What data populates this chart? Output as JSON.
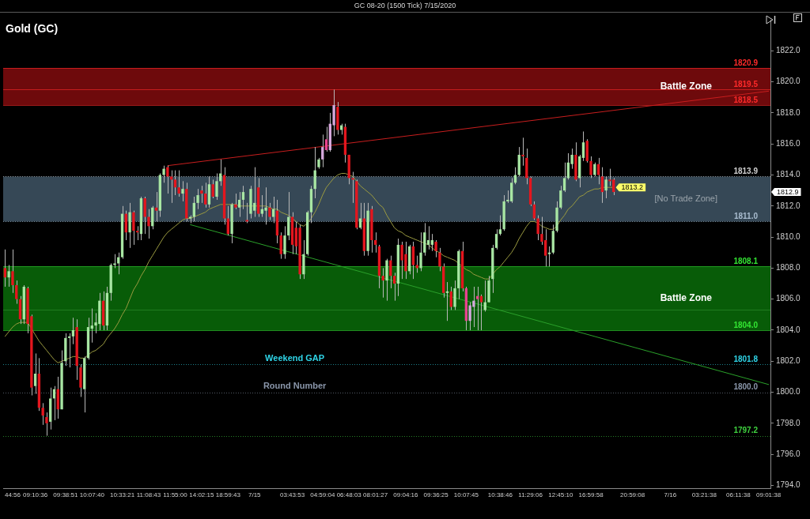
{
  "chart_data": {
    "type": "candlestick",
    "title": "Gold (GC)",
    "subtitle": "GC 08-20 (1500 Tick) 7/15/2020",
    "categories": [
      null,
      null,
      "44:56",
      null,
      null,
      null,
      null,
      null,
      "09:10:36",
      null,
      null,
      null,
      null,
      null,
      null,
      null,
      "09:38:51",
      null,
      null,
      null,
      null,
      null,
      null,
      "10:07:40",
      null,
      null,
      null,
      null,
      null,
      null,
      null,
      "10:33:21",
      null,
      null,
      null,
      null,
      null,
      null,
      "11:08:43",
      null,
      null,
      null,
      null,
      null,
      null,
      "11:55:00",
      null,
      null,
      null,
      null,
      null,
      null,
      "14:02:15",
      null,
      null,
      null,
      null,
      null,
      null,
      "18:59:43",
      null,
      null,
      null,
      null,
      null,
      null,
      "7/15",
      null,
      null,
      null,
      null,
      null,
      null,
      null,
      null,
      null,
      "03:43:53",
      null,
      null,
      null,
      null,
      null,
      null,
      null,
      "04:59:04",
      null,
      null,
      null,
      null,
      null,
      null,
      "06:48:03",
      null,
      null,
      null,
      null,
      null,
      null,
      "08:01:27",
      null,
      null,
      null,
      null,
      null,
      null,
      null,
      "09:04:16",
      null,
      null,
      null,
      null,
      null,
      null,
      null,
      "09:36:25",
      null,
      null,
      null,
      null,
      null,
      null,
      null,
      "10:07:45",
      null,
      null,
      null,
      null,
      null,
      null,
      null,
      null,
      "10:38:46",
      null,
      null,
      null,
      null,
      null,
      null,
      null,
      "11:29:06",
      null,
      null,
      null,
      null,
      null,
      null,
      null,
      "12:45:10",
      null,
      null,
      null,
      null,
      null,
      null,
      null,
      "16:59:58",
      null,
      null,
      null,
      null,
      null,
      null,
      null,
      null,
      null,
      null,
      "20:59:08",
      null,
      null,
      null,
      null,
      null,
      null,
      null,
      null,
      null,
      "7/16",
      null,
      null,
      null,
      null,
      null,
      null,
      null,
      null,
      "03:21:38",
      null,
      null,
      null,
      null,
      null,
      null,
      null,
      null,
      "06:11:38",
      null,
      null,
      null,
      null,
      null,
      null,
      null,
      "09:01:38"
    ],
    "ohlc": [
      [
        1808.0,
        1809.2,
        1806.8,
        1807.4
      ],
      [
        1807.4,
        1808.2,
        1806.8,
        1807.8
      ],
      [
        1807.8,
        1809.2,
        1806.4,
        1806.9
      ],
      [
        1806.9,
        1807.2,
        1805.7,
        1806.0
      ],
      [
        1806.0,
        1806.2,
        1804.4,
        1804.7
      ],
      [
        1804.7,
        1806.9,
        1804.4,
        1806.8
      ],
      [
        1806.7,
        1806.8,
        1803.8,
        1804.4
      ],
      [
        1804.9,
        1805.0,
        1799.8,
        1800.3
      ],
      [
        1800.4,
        1802.5,
        1799.9,
        1801.2
      ],
      [
        1801.2,
        1802.2,
        1798.8,
        1799.0
      ],
      [
        1799.0,
        1799.3,
        1797.9,
        1798.5
      ],
      [
        1798.4,
        1798.7,
        1797.2,
        1798.0
      ],
      [
        1798.1,
        1800.3,
        1797.6,
        1799.6
      ],
      [
        1799.6,
        1800.4,
        1798.2,
        1800.2
      ],
      [
        1800.2,
        1801.0,
        1798.3,
        1798.9
      ],
      [
        1798.9,
        1802.7,
        1798.9,
        1801.9
      ],
      [
        1802.0,
        1803.8,
        1801.7,
        1803.5
      ],
      [
        1803.5,
        1803.8,
        1801.6,
        1803.6
      ],
      [
        1803.6,
        1804.8,
        1803.1,
        1804.0
      ],
      [
        1804.2,
        1804.7,
        1800.8,
        1801.7
      ],
      [
        1801.6,
        1801.8,
        1799.7,
        1800.3
      ],
      [
        1800.2,
        1802.3,
        1798.7,
        1802.2
      ],
      [
        1802.2,
        1804.8,
        1802.1,
        1804.2
      ],
      [
        1804.1,
        1805.4,
        1803.2,
        1804.3
      ],
      [
        1804.3,
        1805.1,
        1803.8,
        1804.5
      ],
      [
        1804.4,
        1806.4,
        1804.0,
        1805.9
      ],
      [
        1805.9,
        1806.5,
        1804.0,
        1804.3
      ],
      [
        1804.3,
        1806.8,
        1804.0,
        1806.4
      ],
      [
        1806.4,
        1808.3,
        1805.9,
        1808.2
      ],
      [
        1808.2,
        1808.9,
        1808.0,
        1808.3
      ],
      [
        1808.3,
        1809.0,
        1807.6,
        1808.7
      ],
      [
        1808.7,
        1812.0,
        1808.6,
        1811.5
      ],
      [
        1811.5,
        1811.7,
        1809.8,
        1810.3
      ],
      [
        1810.3,
        1812.2,
        1809.3,
        1811.6
      ],
      [
        1811.6,
        1811.7,
        1809.5,
        1810.4
      ],
      [
        1810.4,
        1810.7,
        1809.8,
        1810.3
      ],
      [
        1810.2,
        1812.6,
        1809.8,
        1812.5
      ],
      [
        1812.5,
        1812.6,
        1810.2,
        1811.3
      ],
      [
        1811.3,
        1811.8,
        1809.9,
        1810.7
      ],
      [
        1810.7,
        1812.0,
        1810.5,
        1811.9
      ],
      [
        1811.9,
        1812.9,
        1811.0,
        1811.7
      ],
      [
        1811.7,
        1814.1,
        1811.3,
        1814.0
      ],
      [
        1814.0,
        1814.6,
        1813.5,
        1814.4
      ],
      [
        1814.5,
        1814.6,
        1812.8,
        1813.9
      ],
      [
        1813.9,
        1814.3,
        1812.2,
        1813.7
      ],
      [
        1813.7,
        1814.3,
        1812.7,
        1813.2
      ],
      [
        1813.2,
        1814.3,
        1812.6,
        1812.8
      ],
      [
        1812.8,
        1813.6,
        1812.3,
        1813.1
      ],
      [
        1813.1,
        1813.5,
        1811.0,
        1811.2
      ],
      [
        1811.2,
        1811.4,
        1810.9,
        1811.3
      ],
      [
        1811.3,
        1812.6,
        1811.0,
        1812.2
      ],
      [
        1812.2,
        1813.1,
        1811.8,
        1812.7
      ],
      [
        1813.0,
        1813.3,
        1812.2,
        1812.8
      ],
      [
        1812.8,
        1813.5,
        1811.9,
        1812.1
      ],
      [
        1812.1,
        1813.9,
        1811.9,
        1813.4
      ],
      [
        1813.4,
        1813.7,
        1812.5,
        1812.6
      ],
      [
        1812.6,
        1814.1,
        1812.4,
        1813.6
      ],
      [
        1813.6,
        1815.0,
        1813.3,
        1814.1
      ],
      [
        1814.0,
        1814.5,
        1810.8,
        1811.2
      ],
      [
        1811.2,
        1812.0,
        1810.1,
        1810.2
      ],
      [
        1810.2,
        1812.2,
        1809.6,
        1812.1
      ],
      [
        1812.1,
        1812.8,
        1811.8,
        1811.9
      ],
      [
        1811.9,
        1812.9,
        1811.3,
        1812.4
      ],
      [
        1812.4,
        1813.3,
        1811.8,
        1812.9
      ],
      [
        1811.1,
        1812.2,
        1810.9,
        1811.0
      ],
      [
        1811.5,
        1813.3,
        1811.2,
        1813.1
      ],
      [
        1811.7,
        1814.5,
        1811.3,
        1812.2
      ],
      [
        1813.2,
        1813.8,
        1811.3,
        1811.5
      ],
      [
        1811.5,
        1812.7,
        1811.3,
        1811.8
      ],
      [
        1811.7,
        1813.2,
        1810.8,
        1811.9
      ],
      [
        1811.9,
        1812.2,
        1811.1,
        1811.3
      ],
      [
        1811.3,
        1812.6,
        1810.9,
        1811.8
      ],
      [
        1811.7,
        1812.4,
        1809.6,
        1810.1
      ],
      [
        1810.1,
        1810.3,
        1808.6,
        1808.9
      ],
      [
        1808.9,
        1810.7,
        1808.6,
        1810.1
      ],
      [
        1810.1,
        1812.9,
        1809.8,
        1811.3
      ],
      [
        1811.3,
        1811.6,
        1808.9,
        1809.5
      ],
      [
        1810.6,
        1811.0,
        1808.9,
        1809.4
      ],
      [
        1810.6,
        1810.8,
        1807.3,
        1807.6
      ],
      [
        1807.6,
        1809.8,
        1807.3,
        1808.9
      ],
      [
        1808.9,
        1811.7,
        1808.8,
        1811.6
      ],
      [
        1811.6,
        1813.3,
        1810.9,
        1813.1
      ],
      [
        1813.1,
        1815.8,
        1812.5,
        1814.3
      ],
      [
        1814.5,
        1815.1,
        1814.4,
        1815.0
      ],
      [
        1815.0,
        1816.6,
        1814.5,
        1815.8
      ],
      [
        1816.3,
        1817.1,
        1815.5,
        1815.6
      ],
      [
        1815.6,
        1818.0,
        1815.5,
        1817.3
      ],
      [
        1817.2,
        1819.5,
        1816.5,
        1818.5
      ],
      [
        1818.4,
        1818.7,
        1816.6,
        1816.9
      ],
      [
        1816.9,
        1817.3,
        1816.6,
        1817.2
      ],
      [
        1817.1,
        1817.3,
        1814.8,
        1815.3
      ],
      [
        1815.3,
        1815.3,
        1813.4,
        1813.8
      ],
      [
        1813.8,
        1814.2,
        1812.2,
        1813.7
      ],
      [
        1813.6,
        1813.7,
        1810.5,
        1810.6
      ],
      [
        1810.6,
        1812.2,
        1810.5,
        1811.2
      ],
      [
        1811.2,
        1812.2,
        1808.8,
        1809.1
      ],
      [
        1809.1,
        1812.2,
        1808.8,
        1811.7
      ],
      [
        1811.8,
        1812.0,
        1809.0,
        1809.8
      ],
      [
        1809.8,
        1810.3,
        1809.0,
        1809.5
      ],
      [
        1809.4,
        1809.5,
        1806.7,
        1807.5
      ],
      [
        1807.5,
        1808.0,
        1806.1,
        1807.2
      ],
      [
        1807.2,
        1808.6,
        1805.9,
        1808.5
      ],
      [
        1808.5,
        1808.8,
        1806.7,
        1807.5
      ],
      [
        1807.5,
        1807.7,
        1805.9,
        1807.0
      ],
      [
        1807.0,
        1809.9,
        1806.2,
        1809.5
      ],
      [
        1809.5,
        1809.7,
        1807.3,
        1808.5
      ],
      [
        1808.9,
        1809.7,
        1807.3,
        1807.8
      ],
      [
        1807.8,
        1809.5,
        1807.6,
        1809.4
      ],
      [
        1809.4,
        1809.7,
        1807.3,
        1808.2
      ],
      [
        1808.2,
        1808.8,
        1807.7,
        1808.0
      ],
      [
        1808.0,
        1810.3,
        1807.8,
        1809.0
      ],
      [
        1809.0,
        1810.9,
        1808.8,
        1810.3
      ],
      [
        1809.5,
        1810.7,
        1809.2,
        1809.8
      ],
      [
        1809.5,
        1810.2,
        1809.1,
        1809.8
      ],
      [
        1809.7,
        1809.8,
        1808.7,
        1809.1
      ],
      [
        1809.0,
        1809.3,
        1807.8,
        1808.1
      ],
      [
        1808.1,
        1808.3,
        1806.1,
        1806.4
      ],
      [
        1806.4,
        1807.1,
        1804.6,
        1806.5
      ],
      [
        1806.5,
        1806.8,
        1805.3,
        1805.5
      ],
      [
        1805.5,
        1807.2,
        1805.3,
        1806.7
      ],
      [
        1806.7,
        1809.2,
        1806.0,
        1809.1
      ],
      [
        1809.1,
        1809.7,
        1806.5,
        1806.7
      ],
      [
        1806.7,
        1806.8,
        1804.0,
        1804.6
      ],
      [
        1804.6,
        1805.8,
        1804.0,
        1805.6
      ],
      [
        1805.5,
        1806.8,
        1804.2,
        1805.9
      ],
      [
        1806.2,
        1806.8,
        1804.0,
        1806.0
      ],
      [
        1806.2,
        1806.3,
        1804.0,
        1805.8
      ],
      [
        1805.3,
        1807.2,
        1805.2,
        1805.8
      ],
      [
        1805.8,
        1807.5,
        1805.8,
        1807.2
      ],
      [
        1807.3,
        1809.5,
        1806.4,
        1809.3
      ],
      [
        1809.3,
        1810.5,
        1809.2,
        1810.2
      ],
      [
        1810.2,
        1811.4,
        1810.1,
        1810.5
      ],
      [
        1810.5,
        1812.7,
        1810.4,
        1812.3
      ],
      [
        1812.3,
        1813.0,
        1812.2,
        1812.4
      ],
      [
        1812.3,
        1813.8,
        1812.2,
        1813.5
      ],
      [
        1813.5,
        1814.5,
        1813.4,
        1814.0
      ],
      [
        1814.0,
        1815.8,
        1813.9,
        1815.3
      ],
      [
        1815.3,
        1816.4,
        1814.6,
        1815.2
      ],
      [
        1815.1,
        1815.7,
        1813.4,
        1813.8
      ],
      [
        1813.8,
        1813.9,
        1812.0,
        1812.1
      ],
      [
        1812.1,
        1812.3,
        1811.1,
        1811.2
      ],
      [
        1811.2,
        1811.4,
        1809.8,
        1810.2
      ],
      [
        1810.2,
        1811.3,
        1809.5,
        1809.7
      ],
      [
        1809.8,
        1810.5,
        1808.1,
        1808.8
      ],
      [
        1808.9,
        1809.4,
        1808.1,
        1809.0
      ],
      [
        1809.0,
        1810.8,
        1808.9,
        1810.4
      ],
      [
        1810.4,
        1812.3,
        1810.3,
        1811.9
      ],
      [
        1811.9,
        1813.3,
        1811.8,
        1813.0
      ],
      [
        1813.0,
        1814.8,
        1812.9,
        1813.8
      ],
      [
        1813.8,
        1815.4,
        1813.7,
        1814.8
      ],
      [
        1814.7,
        1815.7,
        1814.4,
        1815.3
      ],
      [
        1815.3,
        1816.1,
        1813.6,
        1813.7
      ],
      [
        1813.8,
        1815.3,
        1813.2,
        1815.2
      ],
      [
        1815.1,
        1816.8,
        1814.9,
        1816.1
      ],
      [
        1816.2,
        1816.3,
        1814.8,
        1814.9
      ],
      [
        1814.9,
        1815.2,
        1813.8,
        1814.0
      ],
      [
        1814.0,
        1814.8,
        1813.9,
        1814.7
      ],
      [
        1814.7,
        1815.1,
        1813.4,
        1814.0
      ],
      [
        1813.9,
        1814.5,
        1812.2,
        1812.9
      ],
      [
        1813.0,
        1813.9,
        1812.5,
        1813.7
      ],
      [
        1813.7,
        1814.4,
        1813.3,
        1813.6
      ],
      [
        1813.7,
        1813.8,
        1812.7,
        1812.9
      ],
      null,
      null,
      null,
      null,
      null,
      null,
      null,
      null,
      null,
      null,
      null,
      null,
      null,
      null,
      null,
      null,
      null,
      null,
      null,
      null,
      null,
      null,
      null,
      null,
      null,
      null,
      null,
      null,
      null,
      null,
      null,
      null,
      null,
      null,
      null,
      null,
      null,
      null,
      null,
      null,
      null
    ],
    "value_labels": [
      null,
      null,
      null,
      null,
      null,
      null,
      null,
      null,
      null,
      null,
      null,
      null,
      null,
      null,
      null,
      null,
      null,
      null,
      null,
      null,
      null,
      null,
      null,
      null,
      null,
      null,
      null,
      null,
      null,
      null,
      null,
      null,
      null,
      null,
      null,
      null,
      null,
      null,
      null,
      null,
      null,
      null,
      null,
      null,
      null,
      null,
      null,
      null,
      null,
      null,
      null,
      null,
      null,
      null,
      null,
      null,
      null,
      null,
      null,
      null,
      null,
      null,
      null,
      null,
      null,
      null,
      null,
      null,
      null,
      null,
      null,
      null,
      null,
      null,
      null,
      null,
      null,
      null,
      null,
      null,
      null,
      null,
      null,
      null,
      null,
      null,
      null,
      null,
      null,
      null,
      null,
      null,
      null,
      null,
      null,
      null,
      null,
      null,
      null,
      null,
      null,
      null,
      null,
      null,
      null,
      null,
      null,
      null,
      null,
      null,
      null,
      null,
      null,
      null,
      null,
      null,
      null,
      null,
      null,
      null,
      null,
      null,
      null,
      null,
      null,
      null,
      null,
      null,
      null,
      null,
      null,
      null,
      null,
      null,
      null,
      null,
      null,
      null,
      null,
      null,
      null,
      null,
      null,
      null,
      null,
      null,
      null,
      null,
      null,
      null,
      null,
      null,
      null,
      null,
      null,
      null,
      null,
      null,
      null,
      null,
      null,
      "1812.9",
      null,
      null,
      null,
      null,
      null,
      null,
      null,
      null,
      null,
      null,
      null,
      null,
      null,
      null,
      null,
      null,
      null,
      null,
      null,
      null,
      null,
      null,
      null,
      null,
      null,
      null,
      null,
      null,
      null,
      null,
      null,
      null,
      null,
      null,
      null,
      null,
      null,
      null,
      null,
      null,
      null
    ],
    "colors": [
      "#e4161e",
      "#a8e6a3",
      "#e4161e",
      "#e4161e",
      "#e4161e",
      "#a8e6a3",
      "#e4161e",
      "#e4161e",
      "#a8e6a3",
      "#e4161e",
      "#e4161e",
      "#e4161e",
      "#a8e6a3",
      "#a8e6a3",
      "#e4161e",
      "#a8e6a3",
      "#a8e6a3",
      "#a8e6a3",
      "#a8e6a3",
      "#e4161e",
      "#e4161e",
      "#a8e6a3",
      "#a8e6a3",
      "#a8e6a3",
      "#a8e6a3",
      "#a8e6a3",
      "#e4161e",
      "#a8e6a3",
      "#a8e6a3",
      "#a8e6a3",
      "#a8e6a3",
      "#a8e6a3",
      "#e4161e",
      "#a8e6a3",
      "#e4161e",
      "#e4161e",
      "#a8e6a3",
      "#e4161e",
      "#e4161e",
      "#a8e6a3",
      "#e4161e",
      "#a8e6a3",
      "#a8e6a3",
      "#e4161e",
      "#e4161e",
      "#e4161e",
      "#e4161e",
      "#a8e6a3",
      "#e4161e",
      "#a8e6a3",
      "#a8e6a3",
      "#a8e6a3",
      "#e4161e",
      "#e4161e",
      "#a8e6a3",
      "#e4161e",
      "#a8e6a3",
      "#a8e6a3",
      "#e4161e",
      "#e4161e",
      "#a8e6a3",
      "#e4161e",
      "#a8e6a3",
      "#a8e6a3",
      "#e4161e",
      "#a8e6a3",
      "#a8e6a3",
      "#e4161e",
      "#a8e6a3",
      "#a8e6a3",
      "#e4161e",
      "#a8e6a3",
      "#e4161e",
      "#e4161e",
      "#a8e6a3",
      "#a8e6a3",
      "#e4161e",
      "#e4161e",
      "#e4161e",
      "#a8e6a3",
      "#a8e6a3",
      "#a8e6a3",
      "#a8e6a3",
      "#a8e6a3",
      "#d6a8dc",
      "#e8448e",
      "#d6a8dc",
      "#d6a8dc",
      "#e4161e",
      "#a8e6a3",
      "#e4161e",
      "#e4161e",
      "#e4161e",
      "#e4161e",
      "#a8e6a3",
      "#e4161e",
      "#a8e6a3",
      "#e4161e",
      "#e4161e",
      "#e4161e",
      "#e4161e",
      "#a8e6a3",
      "#e4161e",
      "#e4161e",
      "#a8e6a3",
      "#e4161e",
      "#e4161e",
      "#a8e6a3",
      "#e4161e",
      "#e4161e",
      "#a8e6a3",
      "#a8e6a3",
      "#a8e6a3",
      "#a8e6a3",
      "#e4161e",
      "#e4161e",
      "#e4161e",
      "#a8e6a3",
      "#e4161e",
      "#a8e6a3",
      "#a8e6a3",
      "#e4161e",
      "#e8448e",
      "#d6a8dc",
      "#d6a8dc",
      "#e8448e",
      "#e4161e",
      "#a8e6a3",
      "#a8e6a3",
      "#a8e6a3",
      "#a8e6a3",
      "#a8e6a3",
      "#a8e6a3",
      "#a8e6a3",
      "#a8e6a3",
      "#a8e6a3",
      "#a8e6a3",
      "#e4161e",
      "#e4161e",
      "#e4161e",
      "#e4161e",
      "#e4161e",
      "#e4161e",
      "#e4161e",
      "#a8e6a3",
      "#a8e6a3",
      "#a8e6a3",
      "#a8e6a3",
      "#a8e6a3",
      "#a8e6a3",
      "#a8e6a3",
      "#e4161e",
      "#a8e6a3",
      "#a8e6a3",
      "#e4161e",
      "#e4161e",
      "#a8e6a3",
      "#e4161e",
      "#e4161e",
      "#a8e6a3",
      "#e4161e",
      "#e4161e",
      null,
      null,
      null,
      null,
      null,
      null,
      null,
      null,
      null,
      null,
      null,
      null,
      null,
      null,
      null,
      null,
      null,
      null,
      null,
      null,
      null,
      null,
      null,
      null,
      null,
      null,
      null,
      null,
      null,
      null,
      null,
      null,
      null,
      null,
      null,
      null,
      null,
      null,
      null,
      null,
      null
    ],
    "series": [
      {
        "type": "line",
        "color": "#9a9a40",
        "values": [
          1803.6,
          1803.9,
          1804.2,
          1804.4,
          1804.5,
          1804.5,
          1804.5,
          1804.1,
          1803.7,
          1803.3,
          1803.0,
          1802.7,
          1802.4,
          1802.1,
          1801.9,
          1802.0,
          1802.1,
          1802.2,
          1802.3,
          1802.3,
          1802.2,
          1802.2,
          1802.4,
          1802.6,
          1802.7,
          1802.9,
          1803.1,
          1803.5,
          1803.8,
          1804.1,
          1804.5,
          1805.0,
          1805.4,
          1806.0,
          1806.6,
          1807.0,
          1807.5,
          1807.9,
          1808.4,
          1808.8,
          1809.2,
          1809.6,
          1810.0,
          1810.3,
          1810.5,
          1810.7,
          1810.9,
          1811.1,
          1811.2,
          1811.2,
          1811.3,
          1811.4,
          1811.5,
          1811.6,
          1811.8,
          1811.9,
          1812.0,
          1812.1,
          1812.1,
          1812.1,
          1812.1,
          1812.1,
          1812.0,
          1812.0,
          1812.0,
          1812.0,
          1812.0,
          1812.0,
          1812.0,
          1812.0,
          1811.9,
          1811.8,
          1811.8,
          1811.6,
          1811.5,
          1811.4,
          1811.2,
          1811.0,
          1810.8,
          1810.7,
          1810.9,
          1811.2,
          1811.6,
          1812.1,
          1812.7,
          1813.2,
          1813.5,
          1813.8,
          1814.0,
          1814.1,
          1814.1,
          1814.0,
          1813.9,
          1813.6,
          1813.3,
          1813.1,
          1812.9,
          1812.7,
          1812.4,
          1812.1,
          1811.9,
          1811.4,
          1811.0,
          1810.6,
          1810.4,
          1810.3,
          1810.1,
          1810.0,
          1809.9,
          1809.8,
          1809.7,
          1809.6,
          1809.5,
          1809.3,
          1809.1,
          1809.0,
          1808.8,
          1808.7,
          1808.6,
          1808.5,
          1808.3,
          1808.1,
          1807.9,
          1807.8,
          1807.6,
          1807.5,
          1807.4,
          1807.3,
          1807.3,
          1807.6,
          1807.9,
          1808.1,
          1808.4,
          1808.7,
          1809.0,
          1809.4,
          1809.9,
          1810.3,
          1810.7,
          1811.0,
          1811.0,
          1810.9,
          1810.7,
          1810.6,
          1810.5,
          1810.5,
          1810.7,
          1811.1,
          1811.4,
          1811.8,
          1812.0,
          1812.3,
          1812.6,
          1812.7,
          1812.9,
          1813.0,
          1813.1,
          1813.1,
          1813.2,
          1813.2,
          1813.2,
          1813.2,
          null,
          null,
          null,
          null,
          null,
          null,
          null,
          null,
          null,
          null,
          null,
          null,
          null,
          null,
          null,
          null,
          null,
          null,
          null,
          null,
          null,
          null,
          null,
          null,
          null,
          null,
          null,
          null,
          null,
          null,
          null,
          null,
          null,
          null,
          null,
          null,
          null,
          null,
          null,
          null,
          null
        ],
        "value_labels": [
          null,
          null,
          null,
          null,
          null,
          null,
          null,
          null,
          null,
          null,
          null,
          null,
          null,
          null,
          null,
          null,
          null,
          null,
          null,
          null,
          null,
          null,
          null,
          null,
          null,
          null,
          null,
          null,
          null,
          null,
          null,
          null,
          null,
          null,
          null,
          null,
          null,
          null,
          null,
          null,
          null,
          null,
          null,
          null,
          null,
          null,
          null,
          null,
          null,
          null,
          null,
          null,
          null,
          null,
          null,
          null,
          null,
          null,
          null,
          null,
          null,
          null,
          null,
          null,
          null,
          null,
          null,
          null,
          null,
          null,
          null,
          null,
          null,
          null,
          null,
          null,
          null,
          null,
          null,
          null,
          null,
          null,
          null,
          null,
          null,
          null,
          null,
          null,
          null,
          null,
          null,
          null,
          null,
          null,
          null,
          null,
          null,
          null,
          null,
          null,
          null,
          null,
          null,
          null,
          null,
          null,
          null,
          null,
          null,
          null,
          null,
          null,
          null,
          null,
          null,
          null,
          null,
          null,
          null,
          null,
          null,
          null,
          null,
          null,
          null,
          null,
          null,
          null,
          null,
          null,
          null,
          null,
          null,
          null,
          null,
          null,
          null,
          null,
          null,
          null,
          null,
          null,
          null,
          null,
          null,
          null,
          null,
          null,
          null,
          null,
          null,
          null,
          null,
          null,
          null,
          null,
          null,
          null,
          null,
          null,
          null,
          "1813.2",
          null,
          null,
          null,
          null,
          null,
          null,
          null,
          null,
          null,
          null,
          null,
          null,
          null,
          null,
          null,
          null,
          null,
          null,
          null,
          null,
          null,
          null,
          null,
          null,
          null,
          null,
          null,
          null,
          null,
          null,
          null,
          null,
          null,
          null,
          null,
          null,
          null,
          null,
          null,
          null,
          null
        ]
      },
      {
        "type": "line",
        "color": "#c81e1e",
        "values": [
          null,
          null,
          null,
          null,
          null,
          null,
          null,
          null,
          null,
          null,
          null,
          null,
          null,
          null,
          null,
          null,
          null,
          null,
          null,
          null,
          null,
          null,
          null,
          null,
          null,
          null,
          null,
          null,
          null,
          null,
          null,
          null,
          null,
          null,
          null,
          null,
          null,
          null,
          null,
          null,
          null,
          null,
          null,
          1814.6,
          null,
          null,
          null,
          null,
          null,
          null,
          null,
          null,
          null,
          null,
          null,
          null,
          null,
          null,
          null,
          null,
          null,
          null,
          null,
          null,
          null,
          null,
          null,
          null,
          null,
          null,
          null,
          null,
          null,
          null,
          null,
          null,
          null,
          null,
          null,
          null,
          null,
          null,
          null,
          null,
          null,
          null,
          null,
          null,
          null,
          null,
          null,
          null,
          null,
          null,
          null,
          null,
          null,
          null,
          null,
          null,
          null,
          null,
          null,
          null,
          null,
          null,
          null,
          null,
          null,
          null,
          null,
          null,
          null,
          null,
          null,
          null,
          null,
          null,
          null,
          null,
          null,
          null,
          null,
          null,
          null,
          null,
          null,
          null,
          null,
          null,
          null,
          null,
          null,
          null,
          null,
          null,
          null,
          null,
          null,
          null,
          null,
          null,
          null,
          null,
          null,
          null,
          null,
          null,
          null,
          null,
          null,
          null,
          null,
          null,
          null,
          null,
          null,
          null,
          null,
          null,
          null,
          null,
          null,
          null,
          null,
          null,
          null,
          null,
          null,
          null,
          null,
          null,
          null,
          null,
          null,
          null,
          null,
          null,
          null,
          null,
          null,
          null,
          null,
          null,
          null,
          null,
          null,
          null,
          null,
          null,
          null,
          null,
          null,
          null,
          null,
          null,
          null,
          null,
          null,
          null,
          null,
          null,
          1819.4
        ]
      },
      {
        "type": "line",
        "color": "#2aa02a",
        "values": [
          null,
          null,
          null,
          null,
          null,
          null,
          null,
          null,
          null,
          null,
          null,
          null,
          null,
          null,
          null,
          null,
          null,
          null,
          null,
          null,
          null,
          null,
          null,
          null,
          null,
          null,
          null,
          null,
          null,
          null,
          null,
          null,
          null,
          null,
          null,
          null,
          null,
          null,
          null,
          null,
          null,
          null,
          null,
          null,
          null,
          null,
          null,
          null,
          null,
          1810.8,
          null,
          null,
          null,
          null,
          null,
          null,
          null,
          null,
          null,
          null,
          null,
          null,
          null,
          null,
          null,
          null,
          null,
          null,
          null,
          null,
          null,
          null,
          null,
          null,
          null,
          null,
          null,
          null,
          null,
          null,
          null,
          null,
          null,
          null,
          null,
          null,
          null,
          null,
          null,
          null,
          null,
          null,
          null,
          null,
          null,
          null,
          null,
          null,
          null,
          null,
          null,
          null,
          null,
          null,
          null,
          null,
          null,
          null,
          null,
          null,
          null,
          null,
          null,
          null,
          null,
          null,
          null,
          null,
          null,
          null,
          null,
          null,
          null,
          null,
          null,
          null,
          null,
          null,
          null,
          null,
          null,
          null,
          null,
          null,
          null,
          null,
          null,
          null,
          null,
          null,
          null,
          null,
          null,
          null,
          null,
          null,
          null,
          null,
          null,
          null,
          null,
          null,
          null,
          null,
          null,
          null,
          null,
          null,
          null,
          null,
          null,
          null,
          null,
          null,
          null,
          null,
          null,
          null,
          null,
          null,
          null,
          null,
          null,
          null,
          null,
          null,
          null,
          null,
          null,
          null,
          null,
          null,
          null,
          null,
          null,
          null,
          null,
          null,
          null,
          null,
          null,
          null,
          null,
          null,
          null,
          null,
          null,
          null,
          null,
          null,
          null,
          null,
          1800.5
        ]
      }
    ],
    "ylim": [
      1793.8,
      1824.0
    ],
    "yticks": [
      {
        "value": 1794,
        "label": "1794.0"
      },
      {
        "value": 1796,
        "label": "1796.0"
      },
      {
        "value": 1798,
        "label": "1798.0"
      },
      {
        "value": 1800,
        "label": "1800.0"
      },
      {
        "value": 1802,
        "label": "1802.0"
      },
      {
        "value": 1804,
        "label": "1804.0"
      },
      {
        "value": 1806,
        "label": "1806.0"
      },
      {
        "value": 1808,
        "label": "1808.0"
      },
      {
        "value": 1810,
        "label": "1810.0"
      },
      {
        "value": 1812,
        "label": "1812.0"
      },
      {
        "value": 1814,
        "label": "1814.0"
      },
      {
        "value": 1816,
        "label": "1816.0"
      },
      {
        "value": 1818,
        "label": "1818.0"
      },
      {
        "value": 1820,
        "label": "1820.0"
      },
      {
        "value": 1822,
        "label": "1822.0"
      }
    ],
    "bands": [
      {
        "axis": "y",
        "from": 1818.5,
        "to": 1820.9,
        "label": "Battle Zone",
        "color": "#6e0a0c"
      },
      {
        "axis": "y",
        "from": 1811.0,
        "to": 1813.9,
        "label": "[No Trade Zone]",
        "color": "#364856"
      },
      {
        "axis": "y",
        "from": 1804.0,
        "to": 1808.1,
        "label": "Battle Zone",
        "color": "#085c08"
      }
    ],
    "ref_lines": [
      {
        "axis": "y",
        "value": 1820.9,
        "label": "1820.9",
        "color": "#ff2a2a"
      },
      {
        "axis": "y",
        "value": 1819.5,
        "label": "1819.5",
        "color": "#ff2a2a"
      },
      {
        "axis": "y",
        "value": 1818.5,
        "label": "1818.5",
        "color": "#ff2a2a"
      },
      {
        "axis": "y",
        "value": 1813.9,
        "label": "1813.9",
        "color": "#d0d0d0",
        "line_style": "dotted"
      },
      {
        "axis": "y",
        "value": 1811.0,
        "label": "1811.0",
        "color": "#a9bccf",
        "line_style": "dotted"
      },
      {
        "axis": "y",
        "value": 1808.1,
        "label": "1808.1",
        "color": "#33e633"
      },
      {
        "axis": "y",
        "value": 1805.3,
        "color": "#2f8f2f"
      },
      {
        "axis": "y",
        "value": 1804.0,
        "label": "1804.0",
        "color": "#33e633"
      },
      {
        "axis": "y",
        "value": 1801.8,
        "label": "1801.8",
        "color": "#2fd5e8",
        "line_style": "dotted"
      },
      {
        "axis": "y",
        "value": 1800.0,
        "label": "1800.0",
        "color": "#8a96aa",
        "line_style": "dotted"
      },
      {
        "axis": "y",
        "value": 1797.2,
        "label": "1797.2",
        "color": "#3fd23f",
        "line_style": "dotted"
      }
    ],
    "annotations": [
      {
        "text": "Weekend GAP",
        "y": 1801.8
      },
      {
        "text": "Round Number",
        "y": 1800.0
      }
    ]
  }
}
